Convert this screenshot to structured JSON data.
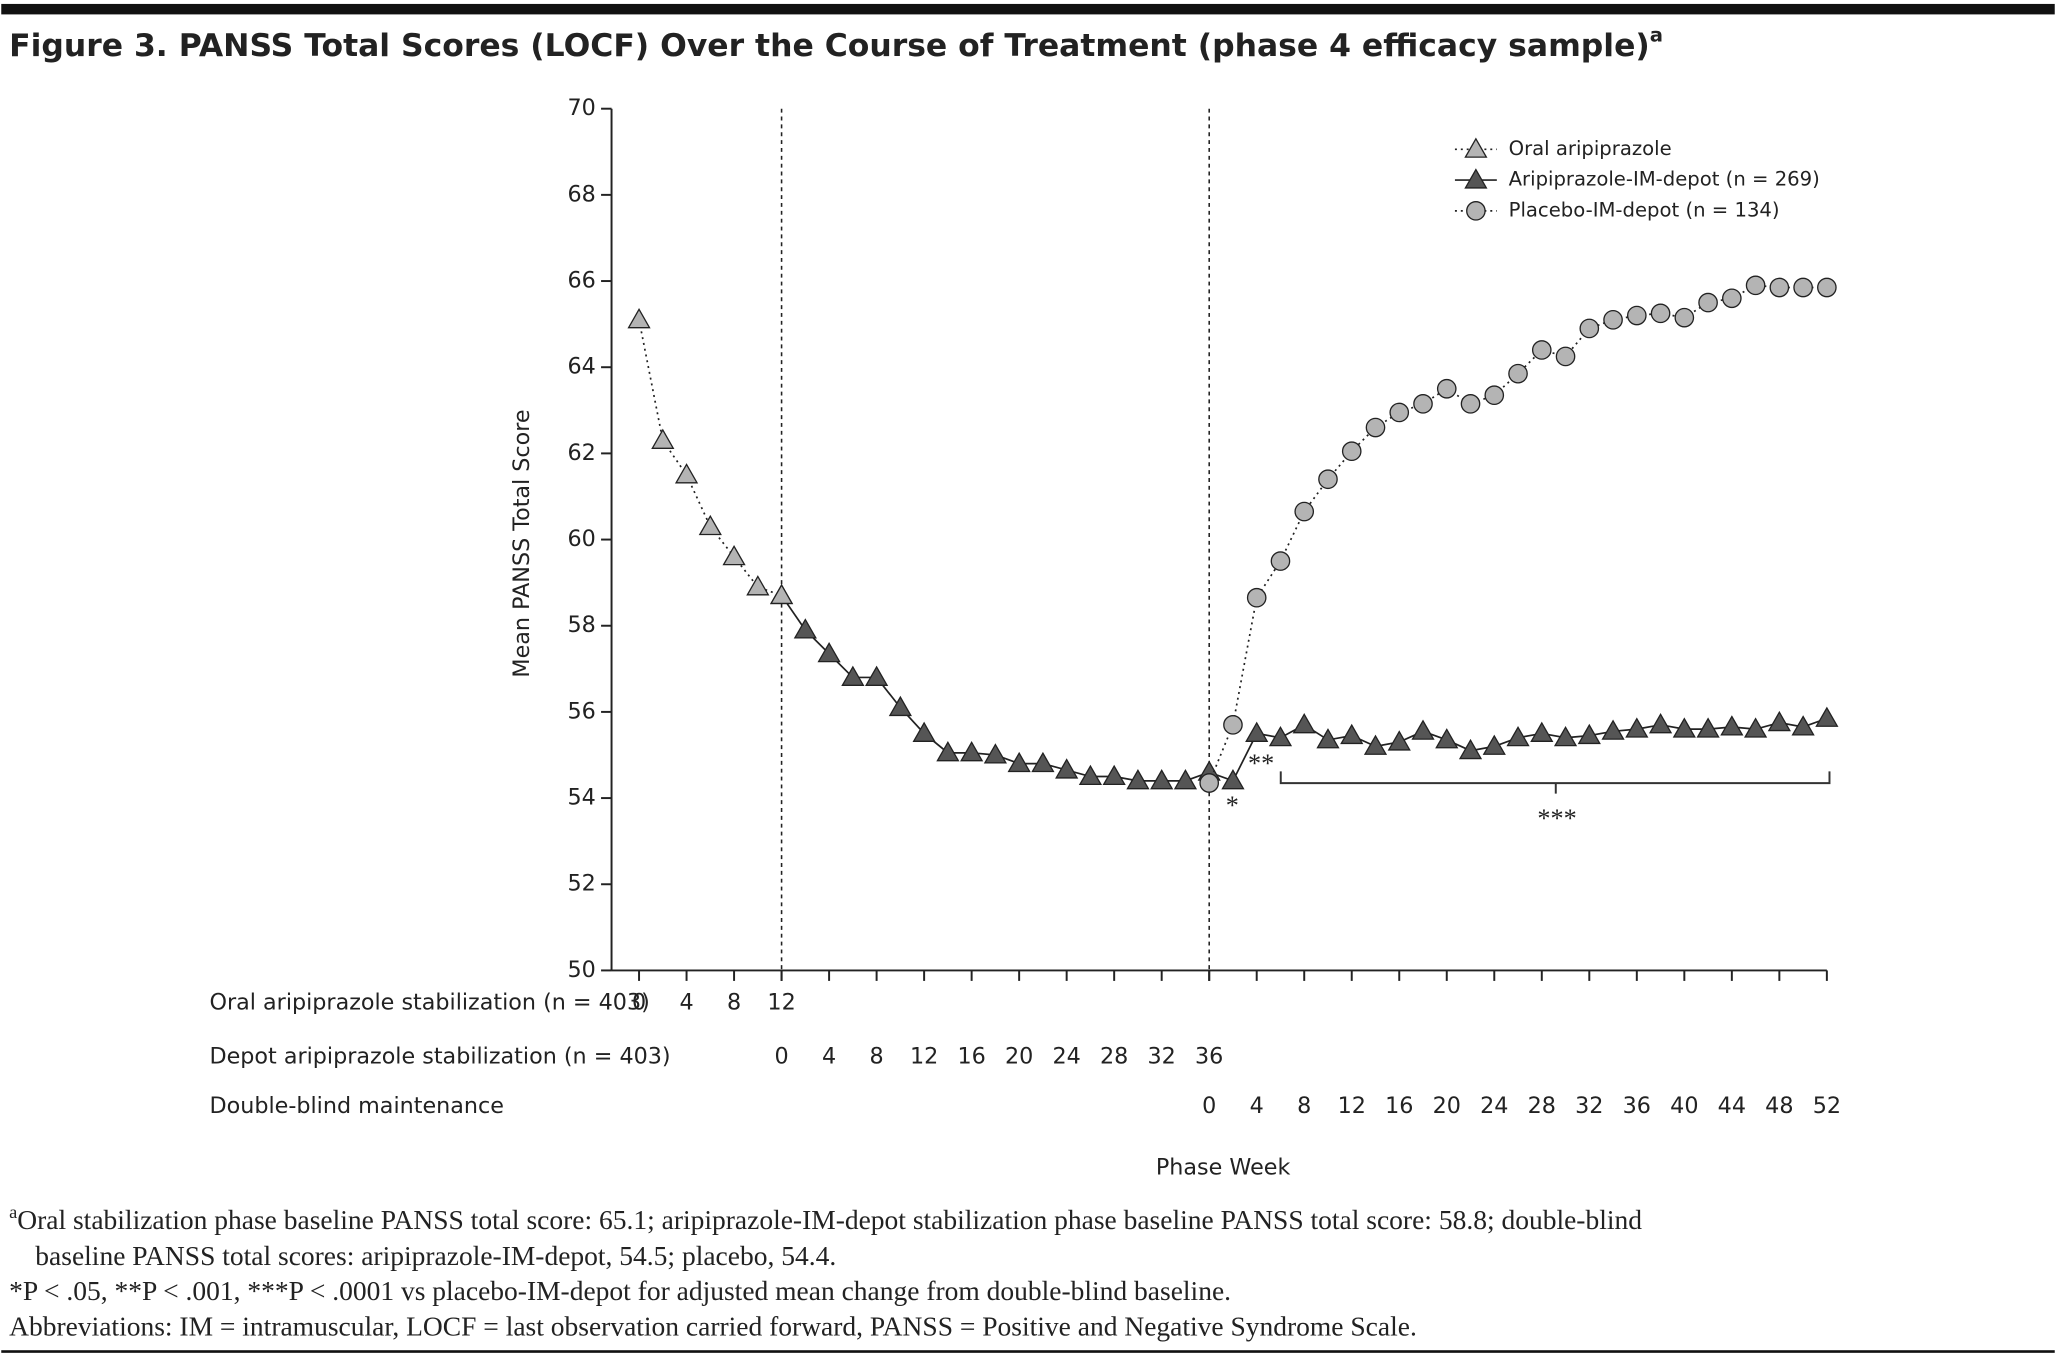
{
  "chart_data": {
    "type": "line",
    "title": "Figure 3. PANSS Total Scores (LOCF) Over the Course of Treatment (phase 4 efficacy sample)",
    "title_marker": "a",
    "y_label": "Mean PANSS Total Score",
    "x_label": "Phase Week",
    "ylim": [
      50,
      70
    ],
    "yticks": [
      50,
      52,
      54,
      56,
      58,
      60,
      62,
      64,
      66,
      68,
      70
    ],
    "x_rows": [
      {
        "label": "Oral aripiprazole stabilization (n = 403)",
        "ticks": [
          0,
          4,
          8,
          12
        ]
      },
      {
        "label": "Depot aripiprazole stabilization (n = 403)",
        "ticks": [
          0,
          4,
          8,
          12,
          16,
          20,
          24,
          28,
          32,
          36
        ]
      },
      {
        "label": "Double-blind maintenance",
        "ticks": [
          0,
          4,
          8,
          12,
          16,
          20,
          24,
          28,
          32,
          36,
          40,
          44,
          48,
          52
        ]
      }
    ],
    "series": [
      {
        "name": "Aripiprazole-IM-depot (n = 269)",
        "color": "#555555",
        "line": "solid",
        "marker": "triangle",
        "phase": [
          1,
          1,
          1,
          1,
          1,
          1,
          1,
          1,
          1,
          1,
          1,
          1,
          1,
          1,
          1,
          1,
          1,
          1,
          1,
          2,
          2,
          2,
          2,
          2,
          2,
          2,
          2,
          2,
          2,
          2,
          2,
          2,
          2,
          2,
          2,
          2,
          2,
          2,
          2,
          2,
          2,
          2,
          2,
          2,
          2
        ],
        "x": [
          0,
          2,
          4,
          6,
          8,
          10,
          12,
          14,
          16,
          18,
          20,
          22,
          24,
          26,
          28,
          30,
          32,
          34,
          36,
          2,
          4,
          6,
          8,
          10,
          12,
          14,
          16,
          18,
          20,
          22,
          24,
          26,
          28,
          30,
          32,
          34,
          36,
          38,
          40,
          42,
          44,
          46,
          48,
          50,
          52
        ],
        "values": [
          58.7,
          57.9,
          57.35,
          56.8,
          56.8,
          56.1,
          55.5,
          55.05,
          55.05,
          55.0,
          54.8,
          54.8,
          54.65,
          54.5,
          54.5,
          54.4,
          54.4,
          54.4,
          54.6,
          54.4,
          55.5,
          55.4,
          55.7,
          55.35,
          55.45,
          55.2,
          55.3,
          55.55,
          55.35,
          55.1,
          55.2,
          55.4,
          55.5,
          55.4,
          55.45,
          55.55,
          55.6,
          55.7,
          55.6,
          55.6,
          55.65,
          55.6,
          55.75,
          55.65,
          55.85
        ]
      },
      {
        "name": "Oral aripiprazole",
        "color": "#b4b4b4",
        "line": "dotted",
        "marker": "triangle",
        "phase": [
          0,
          0,
          0,
          0,
          0,
          0,
          0
        ],
        "x": [
          0,
          2,
          4,
          6,
          8,
          10,
          12
        ],
        "values": [
          65.1,
          62.3,
          61.5,
          60.3,
          59.6,
          58.9,
          58.7
        ]
      },
      {
        "name": "Placebo-IM-depot (n = 134)",
        "color": "#b4b4b4",
        "line": "dotted",
        "marker": "circle",
        "phase": [
          2,
          2,
          2,
          2,
          2,
          2,
          2,
          2,
          2,
          2,
          2,
          2,
          2,
          2,
          2,
          2,
          2,
          2,
          2,
          2,
          2,
          2,
          2,
          2,
          2,
          2,
          2
        ],
        "x": [
          0,
          2,
          4,
          6,
          8,
          10,
          12,
          14,
          16,
          18,
          20,
          22,
          24,
          26,
          28,
          30,
          32,
          34,
          36,
          38,
          40,
          42,
          44,
          46,
          48,
          50,
          52
        ],
        "values": [
          54.35,
          55.7,
          58.65,
          59.5,
          60.65,
          61.4,
          62.05,
          62.6,
          62.95,
          63.15,
          63.5,
          63.15,
          63.35,
          63.85,
          64.4,
          64.25,
          64.9,
          65.1,
          65.2,
          65.25,
          65.15,
          65.5,
          65.6,
          65.9,
          65.85,
          65.85,
          65.85
        ]
      }
    ],
    "annotations": [
      "*",
      "**",
      "***"
    ],
    "footnote_marker": "a",
    "footnotes": [
      "Oral stabilization phase baseline PANSS total score: 65.1; aripiprazole-IM-depot stabilization phase baseline PANSS total score: 58.8; double-blind",
      "baseline PANSS total scores: aripiprazole-IM-depot, 54.5; placebo, 54.4.",
      "*P < .05, **P < .001, ***P < .0001 vs placebo-IM-depot for adjusted mean change from double-blind baseline.",
      "Abbreviations: IM = intramuscular, LOCF = last observation carried forward, PANSS = Positive and Negative Syndrome Scale."
    ]
  }
}
